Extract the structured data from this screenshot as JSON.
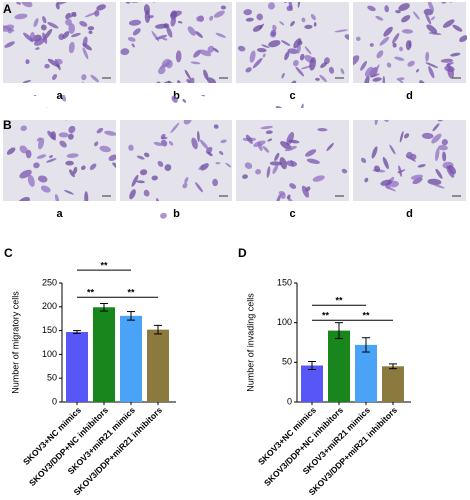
{
  "images": [
    {
      "label": "A",
      "captions": [
        "a",
        "b",
        "c",
        "d"
      ]
    },
    {
      "label": "B",
      "captions": [
        "a",
        "b",
        "c",
        "d"
      ]
    }
  ],
  "chart_data": [
    {
      "type": "bar",
      "panel": "C",
      "ylabel": "Number of migratory cells",
      "categories": [
        "SKOV3+NC mimics",
        "SKOV3/DDP+NC inhibitors",
        "SKOV3+miR21 mimics",
        "SKOV3/DDP+miR21 inhibitors"
      ],
      "values": [
        147,
        199,
        181,
        152
      ],
      "errors": [
        3,
        8,
        9,
        9
      ],
      "colors": [
        "#5757f7",
        "#18861c",
        "#4aa3f7",
        "#8a7a3e"
      ],
      "ylim": [
        0,
        250
      ],
      "yticks": [
        0,
        50,
        100,
        150,
        200,
        250
      ],
      "brackets": [
        {
          "from": 0,
          "to": 2,
          "y": 277,
          "label": "**"
        },
        {
          "from": 0,
          "to": 1,
          "y": 220,
          "label": "**"
        },
        {
          "from": 1,
          "to": 3,
          "y": 220,
          "label": "**"
        }
      ]
    },
    {
      "type": "bar",
      "panel": "D",
      "ylabel": "Number of invading cells",
      "categories": [
        "SKOV3+NC mimics",
        "SKOV3/DDP+NC inhibitors",
        "SKOV3+miR21 mimics",
        "SKOV3/DDP+miR21 inhibitors"
      ],
      "values": [
        46,
        90,
        72,
        45
      ],
      "errors": [
        5,
        10,
        9,
        3
      ],
      "colors": [
        "#5757f7",
        "#18861c",
        "#4aa3f7",
        "#8a7a3e"
      ],
      "ylim": [
        0,
        150
      ],
      "yticks": [
        0,
        50,
        100,
        150
      ],
      "brackets": [
        {
          "from": 0,
          "to": 2,
          "y": 122,
          "label": "**"
        },
        {
          "from": 0,
          "to": 1,
          "y": 103,
          "label": "**"
        },
        {
          "from": 1,
          "to": 3,
          "y": 103,
          "label": "**"
        }
      ]
    }
  ]
}
